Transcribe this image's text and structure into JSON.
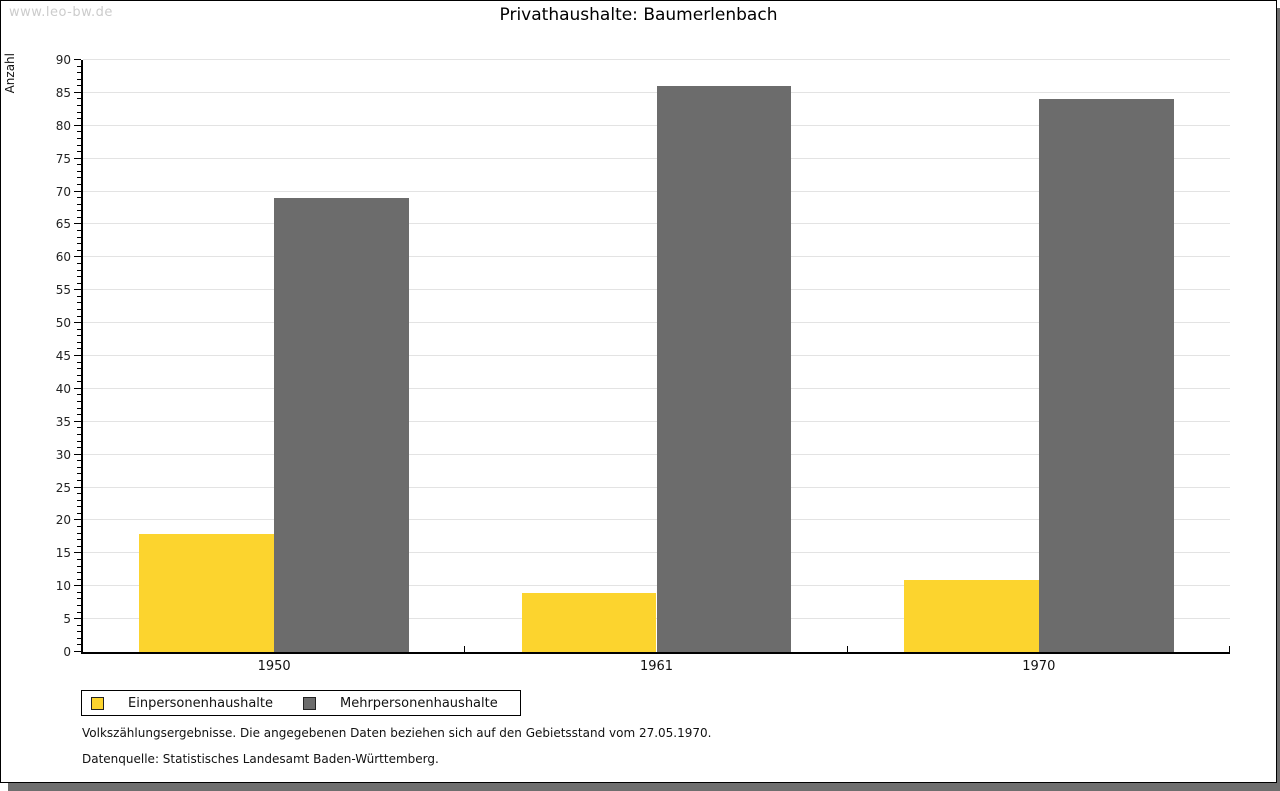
{
  "watermark": "www.leo-bw.de",
  "title": "Privathaushalte: Baumerlenbach",
  "chart_data": {
    "type": "bar",
    "title": "Privathaushalte: Baumerlenbach",
    "categories": [
      "1950",
      "1961",
      "1970"
    ],
    "series": [
      {
        "name": "Einpersonenhaushalte",
        "color": "#FCD42E",
        "values": [
          18,
          9,
          11
        ]
      },
      {
        "name": "Mehrpersonenhaushalte",
        "color": "#6C6C6C",
        "values": [
          69,
          86,
          84
        ]
      }
    ],
    "xlabel": "",
    "ylabel": "Anzahl",
    "ylim": [
      0,
      90
    ],
    "ytick_step": 5,
    "yminor_step": 1,
    "grid": true,
    "legend_position": "bottom-left",
    "gridline_color": "#e3e3e3"
  },
  "legend": {
    "items": [
      {
        "label": "Einpersonenhaushalte",
        "color": "#FCD42E"
      },
      {
        "label": "Mehrpersonenhaushalte",
        "color": "#6C6C6C"
      }
    ]
  },
  "footnotes": [
    "Volkszählungsergebnisse. Die angegebenen Daten beziehen sich auf den Gebietsstand vom 27.05.1970.",
    "Datenquelle: Statistisches Landesamt Baden-Württemberg."
  ]
}
